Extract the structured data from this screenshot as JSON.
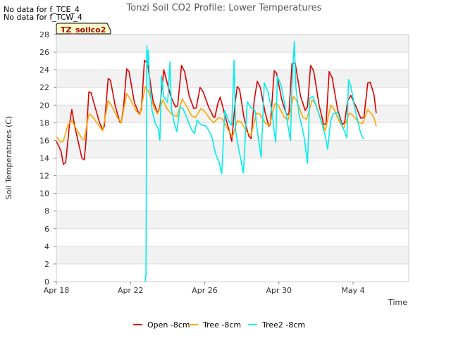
{
  "notes": [
    "No data for f_TCE_4",
    "No data for f_TCW_4"
  ],
  "chart_data": {
    "type": "line",
    "title": "Tonzi Soil CO2 Profile: Lower Temperatures",
    "xlabel": "Time",
    "ylabel": "Soil Temperatures (C)",
    "site_tag": "TZ_soilco2",
    "xlim": [
      "2018-04-18",
      "2018-05-07"
    ],
    "ylim": [
      0,
      28
    ],
    "x_ticks": [
      {
        "date": "2018-04-18",
        "label": "Apr 18"
      },
      {
        "date": "2018-04-22",
        "label": "Apr 22"
      },
      {
        "date": "2018-04-26",
        "label": "Apr 26"
      },
      {
        "date": "2018-04-30",
        "label": "Apr 30"
      },
      {
        "date": "2018-05-04",
        "label": "May 4"
      }
    ],
    "y_ticks": [
      0,
      2,
      4,
      6,
      8,
      10,
      12,
      14,
      16,
      18,
      20,
      22,
      24,
      26,
      28
    ],
    "grid": true,
    "legend_position": "bottom",
    "series": [
      {
        "name": "Open -8cm",
        "color": "#dd0000",
        "points": [
          [
            "2018-04-18 00:00",
            15.9
          ],
          [
            "2018-04-18 06:00",
            14.8
          ],
          [
            "2018-04-18 09:00",
            13.3
          ],
          [
            "2018-04-18 12:00",
            13.5
          ],
          [
            "2018-04-18 17:00",
            17.8
          ],
          [
            "2018-04-18 20:00",
            19.5
          ],
          [
            "2018-04-19 00:00",
            17.5
          ],
          [
            "2018-04-19 06:00",
            15.2
          ],
          [
            "2018-04-19 09:00",
            14.0
          ],
          [
            "2018-04-19 12:00",
            13.8
          ],
          [
            "2018-04-19 14:00",
            15.6
          ],
          [
            "2018-04-19 18:00",
            21.5
          ],
          [
            "2018-04-19 21:00",
            21.4
          ],
          [
            "2018-04-20 02:00",
            19.8
          ],
          [
            "2018-04-20 08:00",
            18.0
          ],
          [
            "2018-04-20 12:00",
            17.2
          ],
          [
            "2018-04-20 14:00",
            17.6
          ],
          [
            "2018-04-20 19:00",
            23.0
          ],
          [
            "2018-04-20 22:00",
            22.8
          ],
          [
            "2018-04-21 04:00",
            20.0
          ],
          [
            "2018-04-21 10:00",
            18.1
          ],
          [
            "2018-04-21 12:00",
            18.0
          ],
          [
            "2018-04-21 15:00",
            19.8
          ],
          [
            "2018-04-21 19:00",
            24.1
          ],
          [
            "2018-04-21 22:00",
            23.8
          ],
          [
            "2018-04-22 05:00",
            20.3
          ],
          [
            "2018-04-22 11:00",
            19.0
          ],
          [
            "2018-04-22 14:00",
            19.5
          ],
          [
            "2018-04-22 18:00",
            25.1
          ],
          [
            "2018-04-22 22:00",
            24.7
          ],
          [
            "2018-04-23 05:00",
            20.5
          ],
          [
            "2018-04-23 11:00",
            19.1
          ],
          [
            "2018-04-23 14:00",
            19.8
          ],
          [
            "2018-04-23 19:00",
            24.0
          ],
          [
            "2018-04-23 22:00",
            23.0
          ],
          [
            "2018-04-24 04:00",
            21.0
          ],
          [
            "2018-04-24 10:00",
            19.8
          ],
          [
            "2018-04-24 13:00",
            19.9
          ],
          [
            "2018-04-24 18:00",
            24.5
          ],
          [
            "2018-04-24 22:00",
            23.8
          ],
          [
            "2018-04-25 04:00",
            21.0
          ],
          [
            "2018-04-25 10:00",
            19.6
          ],
          [
            "2018-04-25 13:00",
            19.7
          ],
          [
            "2018-04-25 18:00",
            22.0
          ],
          [
            "2018-04-25 22:00",
            21.5
          ],
          [
            "2018-04-26 05:00",
            19.8
          ],
          [
            "2018-04-26 11:00",
            18.7
          ],
          [
            "2018-04-26 13:00",
            18.6
          ],
          [
            "2018-04-26 17:00",
            20.2
          ],
          [
            "2018-04-26 20:00",
            20.9
          ],
          [
            "2018-04-27 02:00",
            18.9
          ],
          [
            "2018-04-27 08:00",
            17.0
          ],
          [
            "2018-04-27 11:00",
            15.9
          ],
          [
            "2018-04-27 15:00",
            20.0
          ],
          [
            "2018-04-27 18:00",
            22.1
          ],
          [
            "2018-04-27 21:00",
            21.8
          ],
          [
            "2018-04-28 03:00",
            18.5
          ],
          [
            "2018-04-28 09:00",
            16.5
          ],
          [
            "2018-04-28 12:00",
            16.2
          ],
          [
            "2018-04-28 16:00",
            20.5
          ],
          [
            "2018-04-28 20:00",
            22.7
          ],
          [
            "2018-04-29 00:00",
            22.0
          ],
          [
            "2018-04-29 06:00",
            19.2
          ],
          [
            "2018-04-29 11:00",
            17.6
          ],
          [
            "2018-04-29 13:00",
            17.8
          ],
          [
            "2018-04-29 18:00",
            23.9
          ],
          [
            "2018-04-29 21:00",
            23.6
          ],
          [
            "2018-04-30 04:00",
            20.5
          ],
          [
            "2018-04-30 10:00",
            18.9
          ],
          [
            "2018-04-30 13:00",
            19.0
          ],
          [
            "2018-04-30 17:00",
            24.7
          ],
          [
            "2018-04-30 21:00",
            24.8
          ],
          [
            "2018-05-01 04:00",
            21.0
          ],
          [
            "2018-05-01 10:00",
            19.4
          ],
          [
            "2018-05-01 13:00",
            19.8
          ],
          [
            "2018-05-01 17:00",
            24.5
          ],
          [
            "2018-05-01 21:00",
            23.9
          ],
          [
            "2018-05-02 04:00",
            20.0
          ],
          [
            "2018-05-02 10:00",
            17.8
          ],
          [
            "2018-05-02 13:00",
            17.9
          ],
          [
            "2018-05-02 17:00",
            23.8
          ],
          [
            "2018-05-02 21:00",
            23.1
          ],
          [
            "2018-05-03 04:00",
            19.5
          ],
          [
            "2018-05-03 10:00",
            17.8
          ],
          [
            "2018-05-03 13:00",
            18.0
          ],
          [
            "2018-05-03 17:00",
            20.5
          ],
          [
            "2018-05-03 21:00",
            21.1
          ],
          [
            "2018-05-04 04:00",
            19.8
          ],
          [
            "2018-05-04 10:00",
            18.5
          ],
          [
            "2018-05-04 14:00",
            18.6
          ],
          [
            "2018-05-04 19:00",
            22.5
          ],
          [
            "2018-05-04 22:00",
            22.6
          ],
          [
            "2018-05-05 03:00",
            21.2
          ],
          [
            "2018-05-05 06:00",
            19.1
          ]
        ]
      },
      {
        "name": "Tree -8cm",
        "color": "#ffa500",
        "points": [
          [
            "2018-04-18 00:00",
            16.4
          ],
          [
            "2018-04-18 06:00",
            15.8
          ],
          [
            "2018-04-18 09:00",
            15.9
          ],
          [
            "2018-04-18 15:00",
            17.8
          ],
          [
            "2018-04-18 20:00",
            18.2
          ],
          [
            "2018-04-19 02:00",
            17.3
          ],
          [
            "2018-04-19 09:00",
            16.2
          ],
          [
            "2018-04-19 12:00",
            16.1
          ],
          [
            "2018-04-19 18:00",
            19.0
          ],
          [
            "2018-04-19 22:00",
            18.8
          ],
          [
            "2018-04-20 06:00",
            17.8
          ],
          [
            "2018-04-20 12:00",
            17.1
          ],
          [
            "2018-04-20 19:00",
            20.5
          ],
          [
            "2018-04-20 23:00",
            20.0
          ],
          [
            "2018-04-21 07:00",
            18.6
          ],
          [
            "2018-04-21 12:00",
            18.0
          ],
          [
            "2018-04-21 19:00",
            21.3
          ],
          [
            "2018-04-21 23:00",
            20.8
          ],
          [
            "2018-04-22 07:00",
            19.4
          ],
          [
            "2018-04-22 12:00",
            18.9
          ],
          [
            "2018-04-22 19:00",
            22.1
          ],
          [
            "2018-04-22 23:00",
            21.6
          ],
          [
            "2018-04-23 06:00",
            19.8
          ],
          [
            "2018-04-23 11:00",
            19.0
          ],
          [
            "2018-04-23 15:00",
            19.9
          ],
          [
            "2018-04-23 18:00",
            20.6
          ],
          [
            "2018-04-23 23:00",
            19.6
          ],
          [
            "2018-04-24 06:00",
            18.9
          ],
          [
            "2018-04-24 12:00",
            18.7
          ],
          [
            "2018-04-24 19:00",
            20.7
          ],
          [
            "2018-04-24 23:00",
            20.1
          ],
          [
            "2018-04-25 07:00",
            18.8
          ],
          [
            "2018-04-25 12:00",
            18.6
          ],
          [
            "2018-04-25 19:00",
            19.6
          ],
          [
            "2018-04-25 23:00",
            19.4
          ],
          [
            "2018-04-26 07:00",
            18.4
          ],
          [
            "2018-04-26 12:00",
            18.0
          ],
          [
            "2018-04-26 18:00",
            18.6
          ],
          [
            "2018-04-26 23:00",
            18.4
          ],
          [
            "2018-04-27 07:00",
            17.1
          ],
          [
            "2018-04-27 12:00",
            16.4
          ],
          [
            "2018-04-27 18:00",
            18.2
          ],
          [
            "2018-04-27 23:00",
            18.1
          ],
          [
            "2018-04-28 07:00",
            16.9
          ],
          [
            "2018-04-28 12:00",
            16.6
          ],
          [
            "2018-04-28 19:00",
            19.1
          ],
          [
            "2018-04-28 23:00",
            19.0
          ],
          [
            "2018-04-29 07:00",
            17.9
          ],
          [
            "2018-04-29 12:00",
            17.7
          ],
          [
            "2018-04-29 19:00",
            20.2
          ],
          [
            "2018-04-29 23:00",
            20.0
          ],
          [
            "2018-04-30 07:00",
            18.6
          ],
          [
            "2018-04-30 12:00",
            18.3
          ],
          [
            "2018-04-30 19:00",
            21.0
          ],
          [
            "2018-04-30 23:00",
            20.5
          ],
          [
            "2018-05-01 07:00",
            18.6
          ],
          [
            "2018-05-01 12:00",
            18.4
          ],
          [
            "2018-05-01 19:00",
            20.6
          ],
          [
            "2018-05-01 23:00",
            20.2
          ],
          [
            "2018-05-02 07:00",
            18.2
          ],
          [
            "2018-05-02 12:00",
            17.1
          ],
          [
            "2018-05-02 19:00",
            20.0
          ],
          [
            "2018-05-02 23:00",
            19.6
          ],
          [
            "2018-05-03 07:00",
            18.0
          ],
          [
            "2018-05-03 12:00",
            17.4
          ],
          [
            "2018-05-03 19:00",
            19.1
          ],
          [
            "2018-05-03 23:00",
            18.9
          ],
          [
            "2018-05-04 07:00",
            18.1
          ],
          [
            "2018-05-04 12:00",
            17.9
          ],
          [
            "2018-05-04 19:00",
            19.5
          ],
          [
            "2018-05-04 23:00",
            19.1
          ],
          [
            "2018-05-05 03:00",
            18.6
          ],
          [
            "2018-05-05 06:00",
            17.6
          ]
        ]
      },
      {
        "name": "Tree2 -8cm",
        "color": "#00eeee",
        "points": [
          [
            "2018-04-22 19:00",
            0.0
          ],
          [
            "2018-04-22 20:00",
            1.0
          ],
          [
            "2018-04-22 21:00",
            26.7
          ],
          [
            "2018-04-22 22:00",
            24.5
          ],
          [
            "2018-04-22 23:00",
            26.2
          ],
          [
            "2018-04-23 01:00",
            22.0
          ],
          [
            "2018-04-23 04:00",
            19.3
          ],
          [
            "2018-04-23 08:00",
            17.9
          ],
          [
            "2018-04-23 12:00",
            17.3
          ],
          [
            "2018-04-23 14:00",
            16.0
          ],
          [
            "2018-04-23 16:00",
            23.3
          ],
          [
            "2018-04-23 19:00",
            21.0
          ],
          [
            "2018-04-23 22:00",
            20.5
          ],
          [
            "2018-04-24 00:00",
            20.3
          ],
          [
            "2018-04-24 03:00",
            24.9
          ],
          [
            "2018-04-24 05:00",
            19.5
          ],
          [
            "2018-04-24 09:00",
            17.8
          ],
          [
            "2018-04-24 12:00",
            17.0
          ],
          [
            "2018-04-24 16:00",
            19.8
          ],
          [
            "2018-04-24 20:00",
            19.6
          ],
          [
            "2018-04-25 02:00",
            18.3
          ],
          [
            "2018-04-25 07:00",
            17.2
          ],
          [
            "2018-04-25 11:00",
            16.8
          ],
          [
            "2018-04-25 14:00",
            18.3
          ],
          [
            "2018-04-25 19:00",
            17.8
          ],
          [
            "2018-04-26 02:00",
            17.6
          ],
          [
            "2018-04-26 09:00",
            16.5
          ],
          [
            "2018-04-26 14:00",
            14.5
          ],
          [
            "2018-04-26 19:00",
            13.4
          ],
          [
            "2018-04-26 22:00",
            12.2
          ],
          [
            "2018-04-27 02:00",
            19.4
          ],
          [
            "2018-04-27 07:00",
            18.2
          ],
          [
            "2018-04-27 11:00",
            17.7
          ],
          [
            "2018-04-27 14:00",
            25.1
          ],
          [
            "2018-04-27 16:00",
            17.0
          ],
          [
            "2018-04-27 20:00",
            15.0
          ],
          [
            "2018-04-27 23:00",
            13.7
          ],
          [
            "2018-04-28 02:00",
            12.3
          ],
          [
            "2018-04-28 07:00",
            20.4
          ],
          [
            "2018-04-28 12:00",
            19.7
          ],
          [
            "2018-04-28 17:00",
            19.4
          ],
          [
            "2018-04-28 20:00",
            17.1
          ],
          [
            "2018-04-28 23:00",
            15.2
          ],
          [
            "2018-04-29 01:00",
            14.1
          ],
          [
            "2018-04-29 05:00",
            22.5
          ],
          [
            "2018-04-29 10:00",
            21.5
          ],
          [
            "2018-04-29 15:00",
            19.3
          ],
          [
            "2018-04-29 18:00",
            17.0
          ],
          [
            "2018-04-29 20:00",
            15.8
          ],
          [
            "2018-04-29 22:00",
            23.3
          ],
          [
            "2018-04-30 03:00",
            22.2
          ],
          [
            "2018-04-30 08:00",
            19.8
          ],
          [
            "2018-04-30 12:00",
            17.5
          ],
          [
            "2018-04-30 15:00",
            16.0
          ],
          [
            "2018-04-30 17:00",
            22.5
          ],
          [
            "2018-04-30 20:00",
            27.2
          ],
          [
            "2018-04-30 22:00",
            22.0
          ],
          [
            "2018-05-01 02:00",
            19.0
          ],
          [
            "2018-05-01 06:00",
            17.5
          ],
          [
            "2018-05-01 09:00",
            16.2
          ],
          [
            "2018-05-01 11:00",
            14.7
          ],
          [
            "2018-05-01 13:00",
            13.4
          ],
          [
            "2018-05-01 16:00",
            20.8
          ],
          [
            "2018-05-01 20:00",
            21.0
          ],
          [
            "2018-05-02 02:00",
            19.5
          ],
          [
            "2018-05-02 08:00",
            17.8
          ],
          [
            "2018-05-02 12:00",
            16.5
          ],
          [
            "2018-05-02 15:00",
            15.0
          ],
          [
            "2018-05-02 19:00",
            18.2
          ],
          [
            "2018-05-02 22:00",
            19.0
          ],
          [
            "2018-05-03 04:00",
            19.2
          ],
          [
            "2018-05-03 09:00",
            17.8
          ],
          [
            "2018-05-03 13:00",
            17.0
          ],
          [
            "2018-05-03 16:00",
            16.3
          ],
          [
            "2018-05-03 18:00",
            22.9
          ],
          [
            "2018-05-03 21:00",
            22.2
          ],
          [
            "2018-05-04 02:00",
            19.8
          ],
          [
            "2018-05-04 06:00",
            18.2
          ],
          [
            "2018-05-04 09:00",
            17.1
          ],
          [
            "2018-05-04 12:00",
            16.4
          ],
          [
            "2018-05-04 14:00",
            16.2
          ]
        ]
      }
    ]
  }
}
